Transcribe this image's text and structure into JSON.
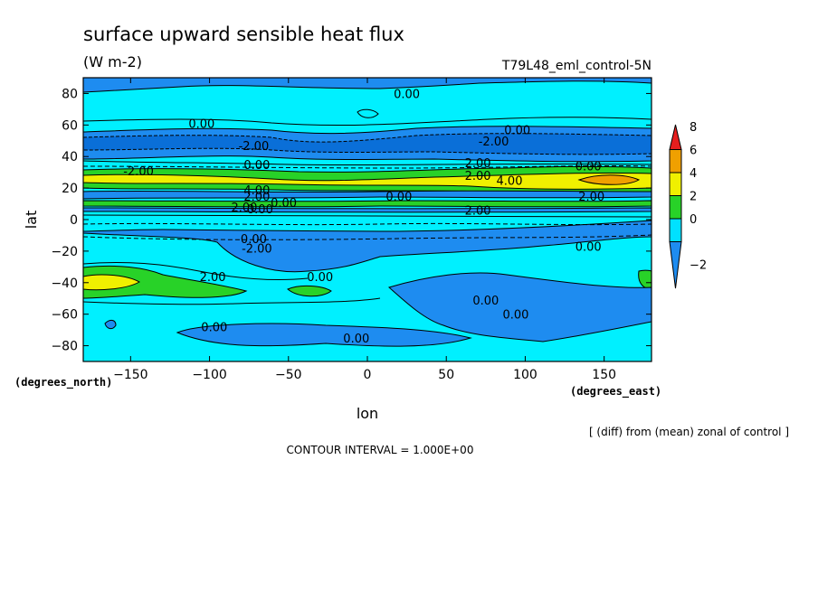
{
  "chart_data": {
    "type": "contour",
    "title": "surface upward sensible heat flux",
    "units": "(W m-2)",
    "run_id": "T79L48_eml_control-5N",
    "xlabel": "lon",
    "ylabel": "lat",
    "x_unit_note": "(degrees_east)",
    "y_unit_note": "(degrees_north)",
    "xlim": [
      -180,
      180
    ],
    "ylim": [
      -90,
      90
    ],
    "x_ticks": [
      -150,
      -100,
      -50,
      0,
      50,
      100,
      150
    ],
    "y_ticks": [
      -80,
      -60,
      -40,
      -20,
      0,
      20,
      40,
      60,
      80
    ],
    "description": "[ (diff) from (mean) zonal of control ]",
    "contour_interval": "CONTOUR INTERVAL = 1.000E+00",
    "colorbar": {
      "levels": [
        -2,
        0,
        2,
        4,
        6,
        8
      ],
      "colors": [
        "#1e8cf0",
        "#00e1ff",
        "#28d228",
        "#f0f000",
        "#f0a000",
        "#e61e1e"
      ]
    },
    "contour_labels": [
      {
        "text": "0.00",
        "lon": 25,
        "lat": 80
      },
      {
        "text": "0.00",
        "lon": -105,
        "lat": 61
      },
      {
        "text": "0.00",
        "lon": 95,
        "lat": 57
      },
      {
        "text": "-2.00",
        "lon": -72,
        "lat": 47
      },
      {
        "text": "-2.00",
        "lon": 80,
        "lat": 50
      },
      {
        "text": "-2.00",
        "lon": -145,
        "lat": 31
      },
      {
        "text": "0.00",
        "lon": -70,
        "lat": 35
      },
      {
        "text": "2.00",
        "lon": 70,
        "lat": 36
      },
      {
        "text": "0.00",
        "lon": 140,
        "lat": 34
      },
      {
        "text": "2.00",
        "lon": 70,
        "lat": 28
      },
      {
        "text": "4.00",
        "lon": 90,
        "lat": 25
      },
      {
        "text": "4.00",
        "lon": -70,
        "lat": 19
      },
      {
        "text": "2.00",
        "lon": -70,
        "lat": 15
      },
      {
        "text": "0.00",
        "lon": 20,
        "lat": 15
      },
      {
        "text": "2.00",
        "lon": 142,
        "lat": 15
      },
      {
        "text": "2.00",
        "lon": -78,
        "lat": 8
      },
      {
        "text": "0.00",
        "lon": -53,
        "lat": 11
      },
      {
        "text": "0.00",
        "lon": -68,
        "lat": 7
      },
      {
        "text": "2.00",
        "lon": 70,
        "lat": 6
      },
      {
        "text": "0.00",
        "lon": -72,
        "lat": -12
      },
      {
        "text": "-2.00",
        "lon": -70,
        "lat": -18
      },
      {
        "text": "0.00",
        "lon": 140,
        "lat": -17
      },
      {
        "text": "2.00",
        "lon": -98,
        "lat": -36
      },
      {
        "text": "0.00",
        "lon": -30,
        "lat": -36
      },
      {
        "text": "0.00",
        "lon": 75,
        "lat": -51
      },
      {
        "text": "0.00",
        "lon": 94,
        "lat": -60
      },
      {
        "text": "0.00",
        "lon": -97,
        "lat": -68
      },
      {
        "text": "0.00",
        "lon": -7,
        "lat": -75
      }
    ]
  }
}
